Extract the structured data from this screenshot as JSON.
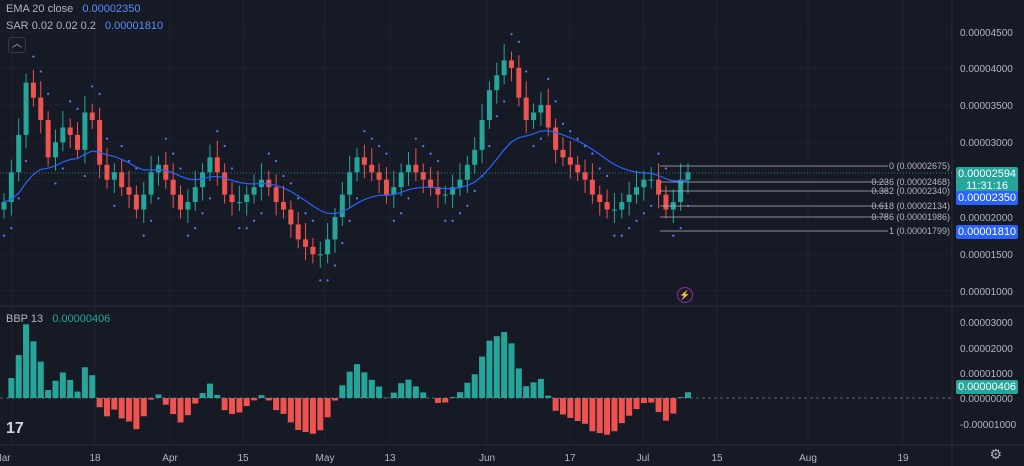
{
  "legend": {
    "ema": {
      "name": "EMA",
      "params": "20 close",
      "value": "0.00002350",
      "color": "#5b8cff"
    },
    "sar": {
      "name": "SAR",
      "params": "0.02 0.02 0.2",
      "value": "0.00001810",
      "color": "#5b8cff"
    },
    "bbp": {
      "name": "BBP",
      "params": "13",
      "value": "0.00000406",
      "color": "#26a69a"
    }
  },
  "price_axis": {
    "ticks": [
      "0.00004500",
      "0.00004000",
      "0.00003500",
      "0.00003000",
      "0.00002500",
      "0.00002000",
      "0.00001500",
      "0.00001000"
    ],
    "tags": [
      {
        "text": "0.00002594",
        "sub": "11:31:16",
        "bg": "#26a69a"
      },
      {
        "text": "0.00002350",
        "bg": "#2962ff"
      },
      {
        "text": "0.00001810",
        "bg": "#2962ff"
      }
    ]
  },
  "bbp_axis": {
    "ticks": [
      "0.00003000",
      "0.00002000",
      "0.00001000",
      "0.00000000",
      "-0.00001000"
    ],
    "tag": {
      "text": "0.00000406",
      "bg": "#26a69a"
    }
  },
  "time_axis": [
    "Mar",
    "18",
    "Apr",
    "15",
    "May",
    "13",
    "Jun",
    "17",
    "Jul",
    "15",
    "Aug",
    "19"
  ],
  "fib_labels": [
    "0 (0.00002675)",
    "0.236 (0.00002468)",
    "0.382 (0.00002340)",
    "0.618 (0.00002134)",
    "0.786 (0.00001986)",
    "1 (0.00001799)"
  ],
  "colors": {
    "up": "#26a69a",
    "down": "#ef5350",
    "ema": "#2962ff",
    "sar": "#5b7cfa",
    "bg": "#161a25"
  },
  "chart_data": {
    "type": "candlestick",
    "candles_close": [
      2.2,
      2.6,
      3.1,
      3.8,
      3.6,
      3.3,
      2.8,
      3.0,
      3.2,
      3.1,
      2.9,
      3.4,
      3.3,
      2.7,
      2.5,
      2.6,
      2.4,
      2.3,
      2.1,
      2.3,
      2.6,
      2.7,
      2.5,
      2.3,
      2.1,
      2.2,
      2.4,
      2.6,
      2.8,
      2.6,
      2.3,
      2.2,
      2.2,
      2.3,
      2.4,
      2.5,
      2.4,
      2.2,
      2.1,
      1.9,
      1.7,
      1.6,
      1.5,
      1.5,
      1.7,
      2.0,
      2.3,
      2.6,
      2.8,
      2.7,
      2.6,
      2.5,
      2.3,
      2.4,
      2.6,
      2.7,
      2.6,
      2.5,
      2.4,
      2.3,
      2.3,
      2.4,
      2.5,
      2.7,
      2.9,
      3.3,
      3.7,
      3.9,
      4.1,
      4.0,
      3.6,
      3.3,
      3.4,
      3.5,
      3.2,
      2.9,
      2.8,
      2.7,
      2.6,
      2.5,
      2.3,
      2.2,
      2.1,
      2.1,
      2.2,
      2.3,
      2.4,
      2.5,
      2.5,
      2.3,
      2.1,
      2.2,
      2.5,
      2.6
    ],
    "ema_value": 2.35e-05,
    "sar_value": 1.81e-05,
    "bbp_value": 4.06e-06
  }
}
